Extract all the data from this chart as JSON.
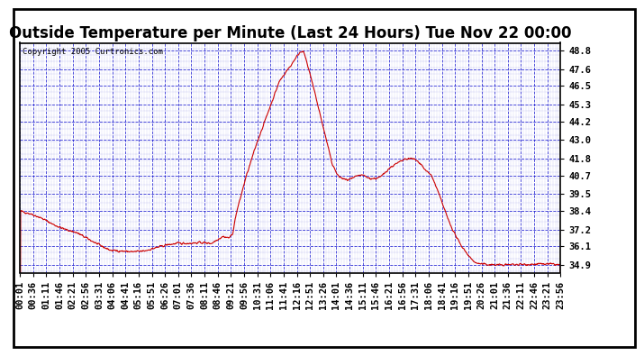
{
  "title": "Outside Temperature per Minute (Last 24 Hours) Tue Nov 22 00:00",
  "copyright": "Copyright 2005 Curtronics.com",
  "ylabel_values": [
    34.9,
    36.1,
    37.2,
    38.4,
    39.5,
    40.7,
    41.8,
    43.0,
    44.2,
    45.3,
    46.5,
    47.6,
    48.8
  ],
  "ylim": [
    34.4,
    49.3
  ],
  "background_color": "#ffffff",
  "plot_bg_color": "#ffffff",
  "line_color": "#cc0000",
  "grid_major_color": "#0000cc",
  "grid_minor_color": "#0000cc",
  "border_color": "#000000",
  "title_fontsize": 12,
  "tick_label_fontsize": 7.5,
  "copyright_fontsize": 6.5,
  "x_tick_labels": [
    "00:01",
    "00:36",
    "01:11",
    "01:46",
    "02:21",
    "02:56",
    "03:31",
    "04:06",
    "04:41",
    "05:16",
    "05:51",
    "06:26",
    "07:01",
    "07:36",
    "08:11",
    "08:46",
    "09:21",
    "09:56",
    "10:31",
    "11:06",
    "11:41",
    "12:16",
    "12:51",
    "13:26",
    "14:01",
    "14:36",
    "15:11",
    "15:46",
    "16:21",
    "16:56",
    "17:31",
    "18:06",
    "18:41",
    "19:16",
    "19:51",
    "20:26",
    "21:01",
    "21:36",
    "22:11",
    "22:46",
    "23:21",
    "23:56"
  ],
  "waypoints": [
    [
      0,
      38.4
    ],
    [
      30,
      38.2
    ],
    [
      60,
      37.9
    ],
    [
      90,
      37.5
    ],
    [
      120,
      37.2
    ],
    [
      150,
      37.0
    ],
    [
      180,
      36.6
    ],
    [
      210,
      36.2
    ],
    [
      240,
      35.85
    ],
    [
      270,
      35.8
    ],
    [
      300,
      35.75
    ],
    [
      330,
      35.8
    ],
    [
      360,
      36.0
    ],
    [
      390,
      36.2
    ],
    [
      420,
      36.3
    ],
    [
      450,
      36.3
    ],
    [
      480,
      36.35
    ],
    [
      510,
      36.3
    ],
    [
      525,
      36.55
    ],
    [
      540,
      36.75
    ],
    [
      555,
      36.65
    ],
    [
      565,
      36.85
    ],
    [
      575,
      38.2
    ],
    [
      600,
      40.5
    ],
    [
      630,
      42.8
    ],
    [
      660,
      44.8
    ],
    [
      690,
      46.8
    ],
    [
      710,
      47.5
    ],
    [
      720,
      47.8
    ],
    [
      730,
      48.2
    ],
    [
      745,
      48.7
    ],
    [
      752,
      48.8
    ],
    [
      758,
      48.5
    ],
    [
      765,
      47.8
    ],
    [
      775,
      47.0
    ],
    [
      785,
      46.0
    ],
    [
      800,
      44.5
    ],
    [
      815,
      43.0
    ],
    [
      830,
      41.5
    ],
    [
      845,
      40.7
    ],
    [
      858,
      40.5
    ],
    [
      870,
      40.4
    ],
    [
      885,
      40.5
    ],
    [
      900,
      40.7
    ],
    [
      915,
      40.7
    ],
    [
      930,
      40.5
    ],
    [
      945,
      40.5
    ],
    [
      960,
      40.6
    ],
    [
      975,
      41.0
    ],
    [
      990,
      41.3
    ],
    [
      1005,
      41.5
    ],
    [
      1020,
      41.7
    ],
    [
      1035,
      41.8
    ],
    [
      1050,
      41.75
    ],
    [
      1065,
      41.5
    ],
    [
      1080,
      41.0
    ],
    [
      1095,
      40.7
    ],
    [
      1110,
      39.8
    ],
    [
      1125,
      38.8
    ],
    [
      1140,
      37.8
    ],
    [
      1155,
      37.0
    ],
    [
      1170,
      36.3
    ],
    [
      1185,
      35.8
    ],
    [
      1200,
      35.3
    ],
    [
      1215,
      35.0
    ],
    [
      1230,
      34.95
    ],
    [
      1250,
      34.92
    ],
    [
      1280,
      34.9
    ],
    [
      1300,
      34.92
    ],
    [
      1320,
      34.93
    ],
    [
      1350,
      34.94
    ],
    [
      1380,
      34.95
    ],
    [
      1410,
      34.96
    ],
    [
      1439,
      34.9
    ]
  ]
}
